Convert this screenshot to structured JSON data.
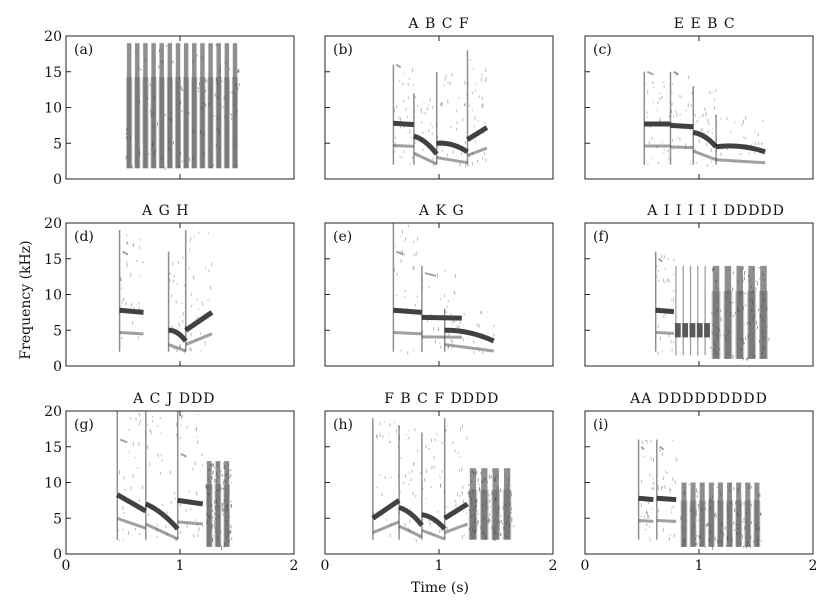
{
  "figure": {
    "ylabel": "Frequency (kHz)",
    "xlabel": "Time (s)"
  },
  "chart_data": {
    "type": "spectrogram-grid",
    "xlim": [
      0,
      2
    ],
    "ylim": [
      0,
      20
    ],
    "x_ticks": [
      0,
      1,
      2
    ],
    "y_ticks": [
      0,
      5,
      10,
      15,
      20
    ],
    "panels": [
      {
        "label": "(a)",
        "notes": "",
        "x_range": [
          0.5,
          1.5
        ],
        "syllables": [
          {
            "t0": 0.52,
            "t1": 1.52,
            "kind": "broadband",
            "fmin": 1.5,
            "fmax": 19,
            "pulses": 14
          }
        ]
      },
      {
        "label": "(b)",
        "notes": "A B C F",
        "x_range": [
          0.6,
          1.4
        ],
        "syllables": [
          {
            "t0": 0.6,
            "t1": 0.78,
            "kind": "tonal",
            "f": [
              7.8,
              7.6
            ],
            "fmax": 16,
            "h": 16
          },
          {
            "t0": 0.78,
            "t1": 0.98,
            "kind": "down",
            "f": [
              6.0,
              3.5
            ],
            "fmax": 12
          },
          {
            "t0": 0.98,
            "t1": 1.25,
            "kind": "down",
            "f": [
              5.0,
              3.8
            ],
            "fmax": 15
          },
          {
            "t0": 1.25,
            "t1": 1.42,
            "kind": "up",
            "f": [
              5.5,
              7.2
            ],
            "fmax": 18
          }
        ]
      },
      {
        "label": "(c)",
        "notes": "E E B C",
        "x_range": [
          0.5,
          1.6
        ],
        "syllables": [
          {
            "t0": 0.52,
            "t1": 0.75,
            "kind": "tonal",
            "f": [
              7.7,
              7.7
            ],
            "fmax": 15,
            "h": 15
          },
          {
            "t0": 0.75,
            "t1": 0.95,
            "kind": "tonal",
            "f": [
              7.5,
              7.3
            ],
            "fmax": 15,
            "h": 15
          },
          {
            "t0": 0.95,
            "t1": 1.15,
            "kind": "down",
            "f": [
              6.5,
              4.5
            ],
            "fmax": 13
          },
          {
            "t0": 1.15,
            "t1": 1.58,
            "kind": "down",
            "f": [
              4.5,
              3.8
            ],
            "fmax": 9
          }
        ]
      },
      {
        "label": "(d)",
        "notes": "A G H",
        "x_range": [
          0.45,
          1.3
        ],
        "syllables": [
          {
            "t0": 0.47,
            "t1": 0.68,
            "kind": "tonal",
            "f": [
              7.8,
              7.5
            ],
            "fmax": 19,
            "h": 16
          },
          {
            "t0": 0.9,
            "t1": 1.05,
            "kind": "down",
            "f": [
              5.0,
              3.5
            ],
            "fmax": 16
          },
          {
            "t0": 1.05,
            "t1": 1.28,
            "kind": "up",
            "f": [
              5.0,
              7.5
            ],
            "fmax": 19
          }
        ]
      },
      {
        "label": "(e)",
        "notes": "A K G",
        "x_range": [
          0.55,
          1.5
        ],
        "syllables": [
          {
            "t0": 0.6,
            "t1": 0.85,
            "kind": "tonal",
            "f": [
              7.8,
              7.5
            ],
            "fmax": 20,
            "h": 16
          },
          {
            "t0": 0.85,
            "t1": 1.2,
            "kind": "tonal",
            "f": [
              6.8,
              6.7
            ],
            "fmax": 14,
            "h": 13
          },
          {
            "t0": 1.05,
            "t1": 1.48,
            "kind": "down",
            "f": [
              5.0,
              3.5
            ],
            "fmax": 8
          }
        ]
      },
      {
        "label": "(f)",
        "notes": "A I I I I I DDDDD",
        "x_range": [
          0.6,
          1.7
        ],
        "syllables": [
          {
            "t0": 0.62,
            "t1": 0.78,
            "kind": "tonal",
            "f": [
              7.8,
              7.6
            ],
            "fmax": 16,
            "h": 15
          },
          {
            "t0": 0.78,
            "t1": 1.1,
            "kind": "pulses",
            "f": [
              5.0,
              5.0
            ],
            "fmax": 14,
            "pulses": 5
          },
          {
            "t0": 1.1,
            "t1": 1.62,
            "kind": "broadband",
            "fmin": 1.0,
            "fmax": 14,
            "pulses": 5
          }
        ]
      },
      {
        "label": "(g)",
        "notes": "A C J DDD",
        "x_range": [
          0.45,
          1.45
        ],
        "syllables": [
          {
            "t0": 0.45,
            "t1": 0.7,
            "kind": "tonal",
            "f": [
              8.3,
              6.0
            ],
            "fmax": 20,
            "h": 16
          },
          {
            "t0": 0.7,
            "t1": 0.98,
            "kind": "down",
            "f": [
              7.0,
              3.5
            ],
            "fmax": 20
          },
          {
            "t0": 0.98,
            "t1": 1.2,
            "kind": "tonal",
            "f": [
              7.5,
              7.0
            ],
            "fmax": 20,
            "h": 14
          },
          {
            "t0": 1.22,
            "t1": 1.45,
            "kind": "broadband",
            "fmin": 1.0,
            "fmax": 13,
            "pulses": 3
          }
        ]
      },
      {
        "label": "(h)",
        "notes": "F B C F DDDD",
        "x_range": [
          0.4,
          1.65
        ],
        "syllables": [
          {
            "t0": 0.42,
            "t1": 0.65,
            "kind": "up",
            "f": [
              5.0,
              7.5
            ],
            "fmax": 19
          },
          {
            "t0": 0.65,
            "t1": 0.85,
            "kind": "down",
            "f": [
              6.5,
              4.0
            ],
            "fmax": 18
          },
          {
            "t0": 0.85,
            "t1": 1.05,
            "kind": "down",
            "f": [
              5.5,
              3.5
            ],
            "fmax": 17
          },
          {
            "t0": 1.05,
            "t1": 1.25,
            "kind": "up",
            "f": [
              5.0,
              7.0
            ],
            "fmax": 19
          },
          {
            "t0": 1.25,
            "t1": 1.65,
            "kind": "broadband",
            "fmin": 2.0,
            "fmax": 12,
            "pulses": 4
          }
        ]
      },
      {
        "label": "(i)",
        "notes": "AA DDDDDDDDD",
        "x_range": [
          0.45,
          1.55
        ],
        "syllables": [
          {
            "t0": 0.47,
            "t1": 0.6,
            "kind": "tonal",
            "f": [
              7.8,
              7.6
            ],
            "fmax": 16,
            "h": 15
          },
          {
            "t0": 0.63,
            "t1": 0.8,
            "kind": "tonal",
            "f": [
              7.8,
              7.6
            ],
            "fmax": 16,
            "h": 15
          },
          {
            "t0": 0.83,
            "t1": 1.55,
            "kind": "broadband",
            "fmin": 1.0,
            "fmax": 10,
            "pulses": 9
          }
        ]
      }
    ]
  }
}
